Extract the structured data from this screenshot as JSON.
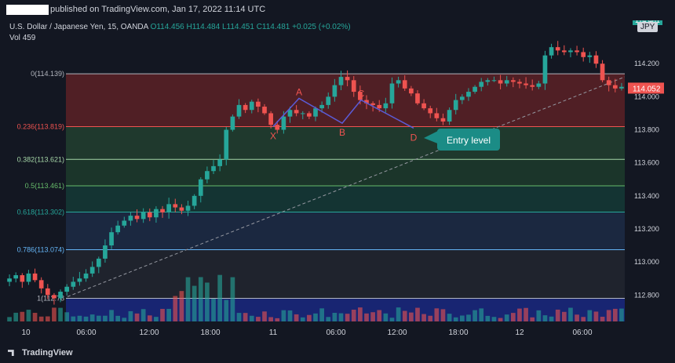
{
  "header": {
    "published_text": "published on TradingView.com, Jan 17, 2022 11:14 UTC"
  },
  "legend": {
    "symbol_text": "U.S. Dollar / Japanese Yen, 15, OANDA",
    "open": "O114.456",
    "high": "H114.484",
    "low": "L114.451",
    "close": "C114.481",
    "change": "+0.025 (+0.02%)",
    "vol_label": "Vol",
    "vol_value": "459"
  },
  "currency_badge": "JPY",
  "footer": {
    "brand": "TradingView"
  },
  "colors": {
    "background": "#131722",
    "up": "#26a69a",
    "down": "#ef5350",
    "pattern_line": "#5b5bd6",
    "pattern_label": "#ef5350",
    "callout_bg": "#1b8c86"
  },
  "chart_data": {
    "type": "candlestick",
    "symbol": "USDJPY",
    "interval": "15",
    "ylim": [
      112.64,
      114.5
    ],
    "y_ticks": [
      "114.200",
      "114.000",
      "113.800",
      "113.600",
      "113.400",
      "113.200",
      "113.000",
      "112.800"
    ],
    "y_top_partial_label": "114.481",
    "current_price_label": "114.052",
    "x_ticks": [
      "10",
      "06:00",
      "12:00",
      "18:00",
      "11",
      "06:00",
      "12:00",
      "18:00",
      "12",
      "06:00"
    ],
    "fib_levels": [
      {
        "ratio": "0",
        "price": 114.139,
        "label": "0(114.139)",
        "color": "#b2b5be",
        "fill": "#5c2126"
      },
      {
        "ratio": "0.236",
        "price": 113.819,
        "label": "0.236(113.819)",
        "color": "#ef5350",
        "fill": "#22402f"
      },
      {
        "ratio": "0.382",
        "price": 113.621,
        "label": "0.382(113.621)",
        "color": "#a5d6a7",
        "fill": "#1d3b2c"
      },
      {
        "ratio": "0.5",
        "price": 113.461,
        "label": "0.5(113.461)",
        "color": "#66bb6a",
        "fill": "#153a36"
      },
      {
        "ratio": "0.618",
        "price": 113.302,
        "label": "0.618(113.302)",
        "color": "#26a69a",
        "fill": "#1d2c45"
      },
      {
        "ratio": "0.786",
        "price": 113.074,
        "label": "0.786(113.074)",
        "color": "#64b5f6",
        "fill": "#22262f"
      },
      {
        "ratio": "1",
        "price": 112.78,
        "label": "1(112.78",
        "color": "#b2b5be",
        "fill": "#1a2880"
      }
    ],
    "pattern_points": [
      {
        "label": "X",
        "price": 113.82
      },
      {
        "label": "A",
        "price": 113.99
      },
      {
        "label": "B",
        "price": 113.84
      },
      {
        "label": "C",
        "price": 113.98
      },
      {
        "label": "D",
        "price": 113.81
      }
    ],
    "annotation": "Entry level",
    "price_path": [
      112.9,
      112.92,
      112.88,
      112.93,
      112.89,
      112.84,
      112.8,
      112.78,
      112.82,
      112.85,
      112.88,
      112.9,
      112.93,
      112.97,
      113.02,
      113.1,
      113.18,
      113.22,
      113.25,
      113.28,
      113.26,
      113.3,
      113.27,
      113.32,
      113.3,
      113.35,
      113.33,
      113.31,
      113.34,
      113.4,
      113.5,
      113.55,
      113.58,
      113.62,
      113.8,
      113.88,
      113.95,
      113.92,
      113.97,
      113.94,
      113.9,
      113.83,
      113.8,
      113.88,
      113.92,
      113.9,
      113.9,
      113.88,
      113.93,
      113.95,
      114.0,
      114.07,
      114.12,
      114.1,
      114.03,
      113.98,
      113.96,
      113.95,
      113.93,
      113.96,
      114.08,
      114.1,
      114.05,
      114.02,
      113.96,
      113.93,
      113.9,
      113.87,
      113.85,
      113.92,
      113.98,
      114.0,
      114.03,
      114.06,
      114.09,
      114.1,
      114.1,
      114.08,
      114.1,
      114.09,
      114.08,
      114.07,
      114.06,
      114.08,
      114.25,
      114.3,
      114.28,
      114.27,
      114.28,
      114.27,
      114.24,
      114.25,
      114.2,
      114.1,
      114.07,
      114.05,
      114.06
    ]
  }
}
